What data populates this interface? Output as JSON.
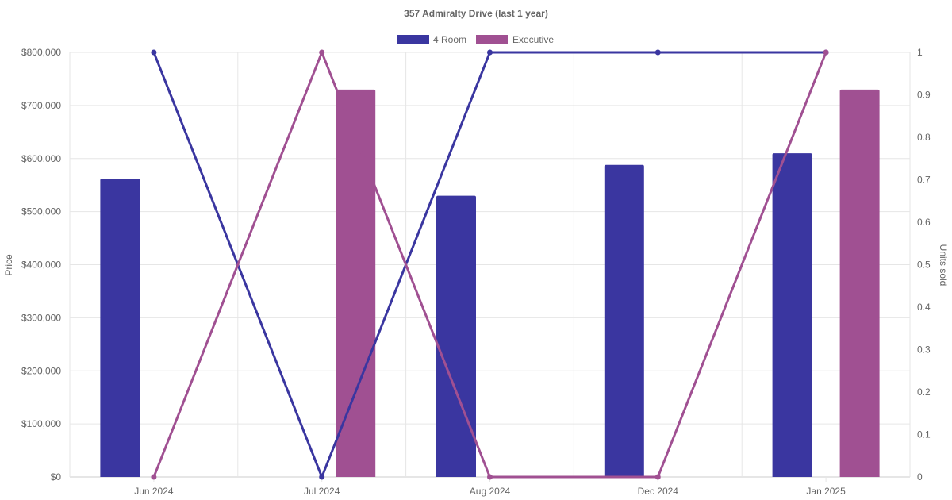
{
  "chart_data": {
    "type": "bar",
    "title": "357 Admiralty Drive (last 1 year)",
    "categories": [
      "Jun 2024",
      "Jul 2024",
      "Aug 2024",
      "Dec 2024",
      "Jan 2025"
    ],
    "series": [
      {
        "name": "4 Room",
        "color": "#3a36a0",
        "price": [
          562000,
          null,
          530000,
          588000,
          610000
        ],
        "units_sold": [
          1,
          0,
          1,
          1,
          1
        ]
      },
      {
        "name": "Executive",
        "color": "#a05092",
        "price": [
          null,
          730000,
          null,
          null,
          730000
        ],
        "units_sold": [
          0,
          1,
          0,
          0,
          1
        ]
      }
    ],
    "y_left": {
      "label": "Price",
      "min": 0,
      "max": 800000,
      "ticks": [
        "$0",
        "$100,000",
        "$200,000",
        "$300,000",
        "$400,000",
        "$500,000",
        "$600,000",
        "$700,000",
        "$800,000"
      ]
    },
    "y_right": {
      "label": "Units sold",
      "min": 0,
      "max": 1,
      "ticks": [
        "0",
        "0.1",
        "0.2",
        "0.3",
        "0.4",
        "0.5",
        "0.6",
        "0.7",
        "0.8",
        "0.9",
        "1"
      ]
    },
    "grid": true,
    "legend_position": "top"
  }
}
